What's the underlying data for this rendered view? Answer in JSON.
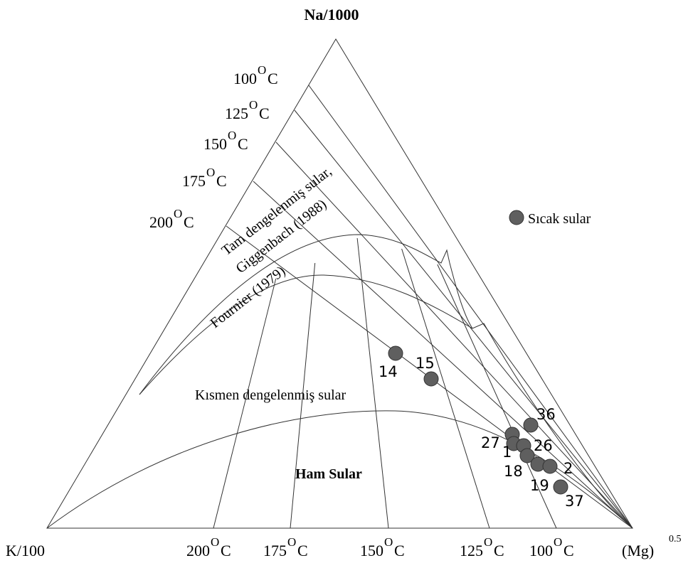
{
  "axes": {
    "top": "Na/1000",
    "left": "K/100",
    "right": "(Mg)",
    "right_exponent": "0.5"
  },
  "degree_mark": "O",
  "degree_unit": "C",
  "left_temperatures": [
    "100",
    "125",
    "150",
    "175",
    "200"
  ],
  "bottom_temperatures": [
    "200",
    "175",
    "150",
    "125",
    "100"
  ],
  "regions": {
    "full_line1": "Tam dengelenmiş sular,",
    "full_line2": "Giggenbach (1988)",
    "fournier": "Fournier (1979)",
    "partial": "Kısmen dengelenmiş sular",
    "immature": "Ham Sular"
  },
  "legend": "Sıcak sular",
  "samples": [
    "14",
    "15",
    "36",
    "27",
    "1",
    "26",
    "18",
    "2",
    "19",
    "37"
  ]
}
